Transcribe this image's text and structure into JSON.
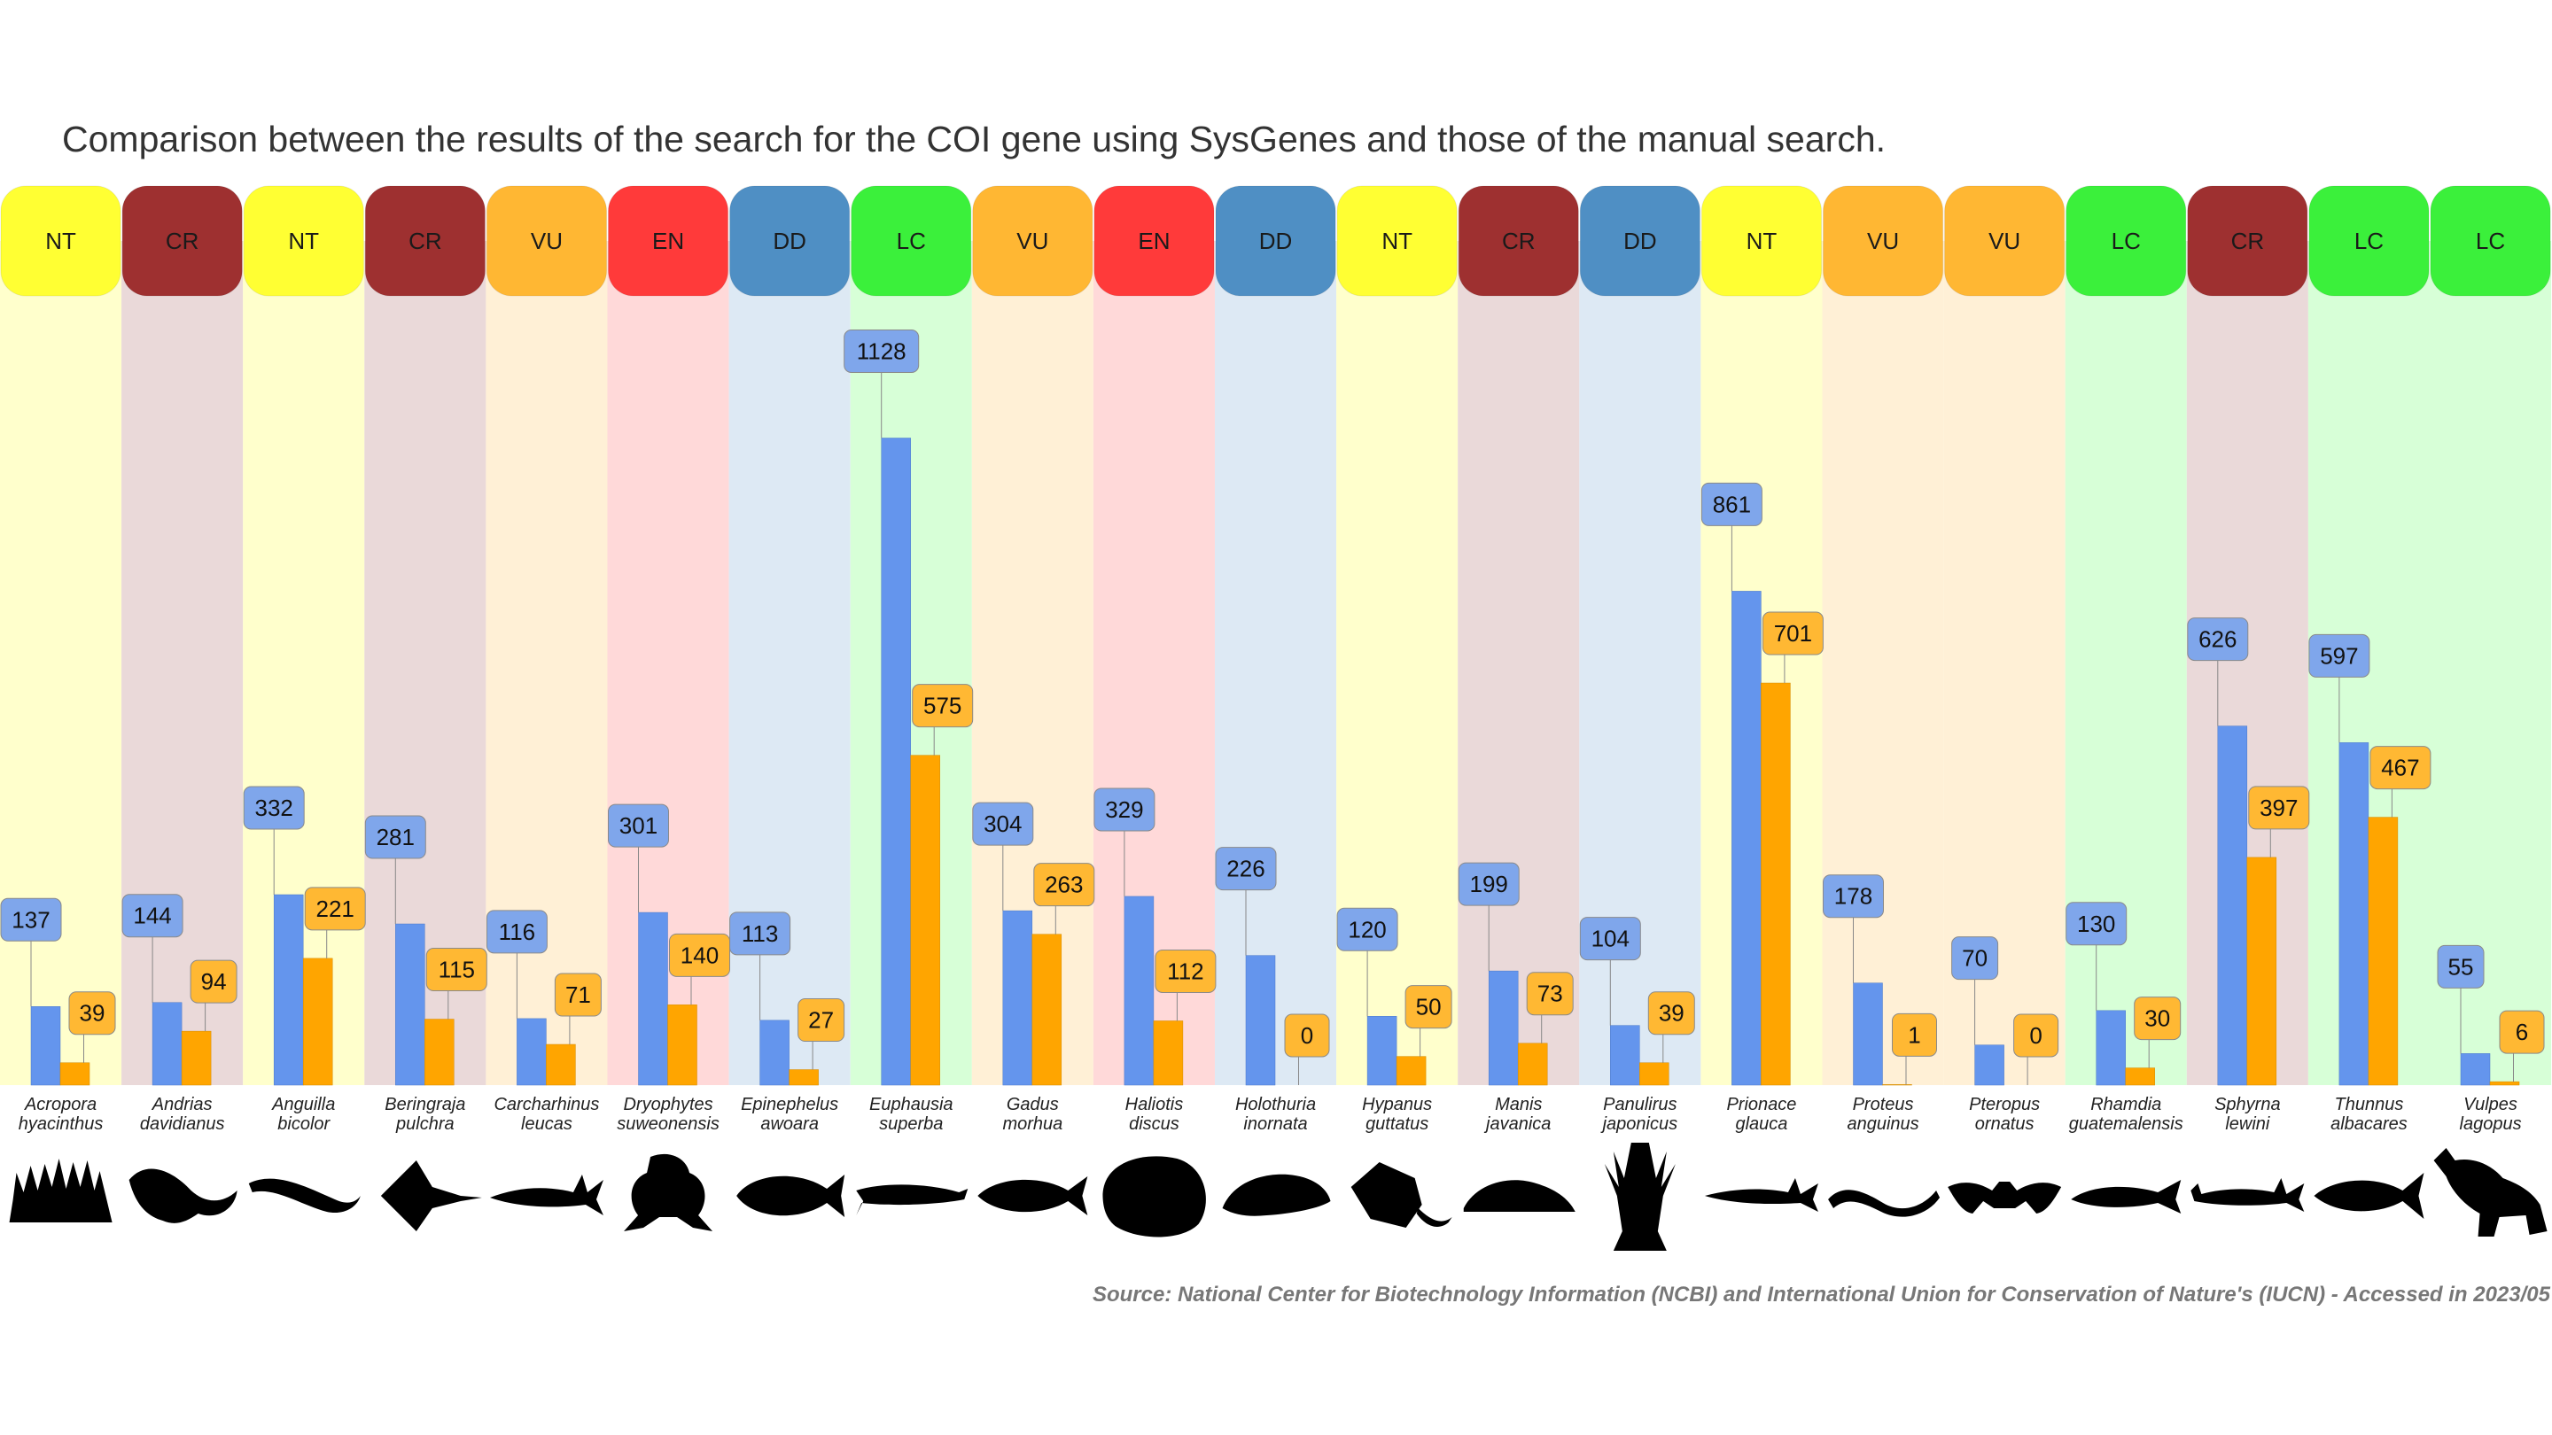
{
  "title": "Comparison between the results of the search for the COI gene using SysGenes and those of the manual search.",
  "source": "Source: National Center for Biotechnology Information (NCBI) and International Union for Conservation of Nature's (IUCN) - Accessed in 2023/05",
  "status_colors": {
    "NT": {
      "header": "#ffff33",
      "band": "#ffffcc"
    },
    "CR": {
      "header": "#9e3030",
      "band": "#ead9d9"
    },
    "VU": {
      "header": "#ffb733",
      "band": "#fff0d6"
    },
    "EN": {
      "header": "#ff3a3a",
      "band": "#ffd9d9"
    },
    "DD": {
      "header": "#4f8fc4",
      "band": "#dde9f4"
    },
    "LC": {
      "header": "#3bf03b",
      "band": "#d7ffd7"
    }
  },
  "series_colors": {
    "sysgenes": "#6495ed",
    "manual": "#ffa500",
    "sysgenes_label": "#7fa6eb",
    "manual_label": "#ffb833"
  },
  "chart_data": {
    "type": "bar",
    "title": "Comparison between the results of the search for the COI gene using SysGenes and those of the manual search.",
    "ylim": [
      0,
      1300
    ],
    "grid": false,
    "legend": "none",
    "categories": [
      {
        "genus": "Acropora",
        "epithet": "hyacinthus",
        "status": "NT",
        "silhouette": "coral-icon"
      },
      {
        "genus": "Andrias",
        "epithet": "davidianus",
        "status": "CR",
        "silhouette": "salamander-icon"
      },
      {
        "genus": "Anguilla",
        "epithet": "bicolor",
        "status": "NT",
        "silhouette": "eel-icon"
      },
      {
        "genus": "Beringraja",
        "epithet": "pulchra",
        "status": "CR",
        "silhouette": "skate-icon"
      },
      {
        "genus": "Carcharhinus",
        "epithet": "leucas",
        "status": "VU",
        "silhouette": "shark-icon"
      },
      {
        "genus": "Dryophytes",
        "epithet": "suweonensis",
        "status": "EN",
        "silhouette": "frog-icon"
      },
      {
        "genus": "Epinephelus",
        "epithet": "awoara",
        "status": "DD",
        "silhouette": "grouper-icon"
      },
      {
        "genus": "Euphausia",
        "epithet": "superba",
        "status": "LC",
        "silhouette": "krill-icon"
      },
      {
        "genus": "Gadus",
        "epithet": "morhua",
        "status": "VU",
        "silhouette": "cod-icon"
      },
      {
        "genus": "Haliotis",
        "epithet": "discus",
        "status": "EN",
        "silhouette": "abalone-icon"
      },
      {
        "genus": "Holothuria",
        "epithet": "inornata",
        "status": "DD",
        "silhouette": "sea-cucumber-icon"
      },
      {
        "genus": "Hypanus",
        "epithet": "guttatus",
        "status": "NT",
        "silhouette": "stingray-icon"
      },
      {
        "genus": "Manis",
        "epithet": "javanica",
        "status": "CR",
        "silhouette": "pangolin-icon"
      },
      {
        "genus": "Panulirus",
        "epithet": "japonicus",
        "status": "DD",
        "silhouette": "lobster-icon"
      },
      {
        "genus": "Prionace",
        "epithet": "glauca",
        "status": "NT",
        "silhouette": "blue-shark-icon"
      },
      {
        "genus": "Proteus",
        "epithet": "anguinus",
        "status": "VU",
        "silhouette": "olm-icon"
      },
      {
        "genus": "Pteropus",
        "epithet": "ornatus",
        "status": "VU",
        "silhouette": "bat-icon"
      },
      {
        "genus": "Rhamdia",
        "epithet": "guatemalensis",
        "status": "LC",
        "silhouette": "catfish-icon"
      },
      {
        "genus": "Sphyrna",
        "epithet": "lewini",
        "status": "CR",
        "silhouette": "hammerhead-icon"
      },
      {
        "genus": "Thunnus",
        "epithet": "albacares",
        "status": "LC",
        "silhouette": "tuna-icon"
      },
      {
        "genus": "Vulpes",
        "epithet": "lagopus",
        "status": "LC",
        "silhouette": "fox-icon"
      }
    ],
    "series": [
      {
        "key": "sysgenes",
        "values": [
          137,
          144,
          332,
          281,
          116,
          301,
          113,
          1128,
          304,
          329,
          226,
          120,
          199,
          104,
          861,
          178,
          70,
          130,
          626,
          597,
          55
        ]
      },
      {
        "key": "manual",
        "values": [
          39,
          94,
          221,
          115,
          71,
          140,
          27,
          575,
          263,
          112,
          0,
          50,
          73,
          39,
          701,
          1,
          0,
          30,
          397,
          467,
          6
        ]
      }
    ]
  }
}
